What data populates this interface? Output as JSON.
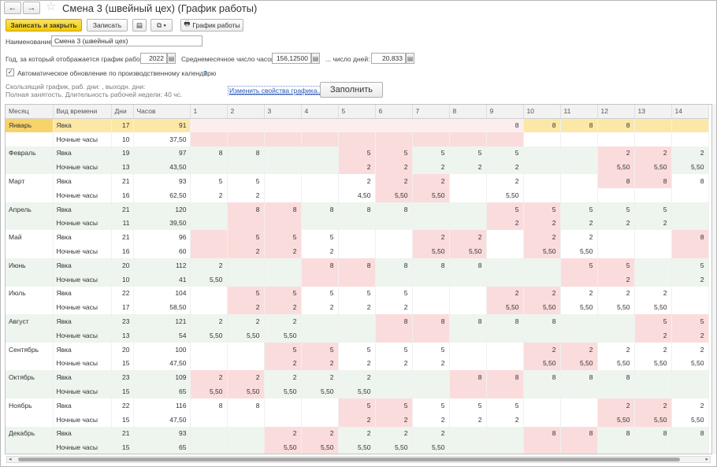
{
  "window": {
    "back": "←",
    "forward": "→",
    "star": "☆",
    "title": "Смена 3 (швейный цех) (График работы)"
  },
  "toolbar": {
    "save_close": "Записать и закрыть",
    "save": "Записать",
    "list_icon": "▤",
    "copy_icon": "⧉ ▾",
    "print_icon": "🖶",
    "schedule": "График работы"
  },
  "form": {
    "name_label": "Наименование:",
    "name_value": "Смена 3 (швейный цех)",
    "year_label": "Год, за который отображается график работы:",
    "year_value": "2022",
    "avg_hours_label": "Среднемесячное число часов:",
    "avg_hours_value": "156,12500",
    "days_label": "... число дней:",
    "days_value": "20,833",
    "auto_update_label": "Автоматическое обновление по производственному календарю",
    "auto_update_checked": "✓",
    "help": "?",
    "info_line1": "Скользящий график, раб. дни: , выходн. дни:",
    "info_line2": "Полная занятость. Длительность рабочей недели: 40 чс.",
    "change_props": "Изменить свойства графика...",
    "fill_button": "Заполнить"
  },
  "grid": {
    "headers": [
      "Месяц",
      "Вид времени",
      "Дни",
      "Часов",
      "1",
      "2",
      "3",
      "4",
      "5",
      "6",
      "7",
      "8",
      "9",
      "10",
      "11",
      "12",
      "13",
      "14"
    ],
    "rows": [
      {
        "month": "Январь",
        "kind": "Явка",
        "days": "17",
        "hours": "91",
        "day_vals": [
          "",
          "",
          "",
          "",
          "",
          "",
          "",
          "",
          "8",
          "8",
          "8",
          "8",
          "",
          ""
        ],
        "day_colors": [
          "lp",
          "lp",
          "lp",
          "lp",
          "lp",
          "lp",
          "lp",
          "lp",
          "lp",
          "y",
          "y",
          "y",
          "y",
          "y"
        ]
      },
      {
        "month": "",
        "kind": "Ночные часы",
        "days": "10",
        "hours": "37,50",
        "day_vals": [
          "",
          "",
          "",
          "",
          "",
          "",
          "",
          "",
          "",
          "",
          "",
          "",
          "",
          ""
        ],
        "day_colors": [
          "p",
          "p",
          "p",
          "p",
          "p",
          "p",
          "p",
          "p",
          "p",
          "w",
          "w",
          "w",
          "w",
          "w"
        ]
      },
      {
        "month": "Февраль",
        "kind": "Явка",
        "days": "19",
        "hours": "97",
        "day_vals": [
          "8",
          "8",
          "",
          "",
          "5",
          "5",
          "5",
          "5",
          "5",
          "",
          "",
          "2",
          "2",
          "2"
        ],
        "day_colors": [
          "g",
          "g",
          "g",
          "g",
          "p",
          "p",
          "g",
          "g",
          "g",
          "g",
          "g",
          "p",
          "p",
          "g"
        ]
      },
      {
        "month": "",
        "kind": "Ночные часы",
        "days": "13",
        "hours": "43,50",
        "day_vals": [
          "",
          "",
          "",
          "",
          "2",
          "2",
          "2",
          "2",
          "2",
          "",
          "",
          "5,50",
          "5,50",
          "5,50"
        ],
        "day_colors": [
          "g",
          "g",
          "g",
          "g",
          "p",
          "p",
          "g",
          "g",
          "g",
          "g",
          "g",
          "p",
          "p",
          "g"
        ]
      },
      {
        "month": "Март",
        "kind": "Явка",
        "days": "21",
        "hours": "93",
        "day_vals": [
          "5",
          "5",
          "",
          "",
          "2",
          "2",
          "2",
          "",
          "2",
          "",
          "",
          "8",
          "8",
          "8"
        ],
        "day_colors": [
          "w",
          "w",
          "w",
          "w",
          "w",
          "p",
          "p",
          "w",
          "w",
          "w",
          "w",
          "p",
          "p",
          "w"
        ]
      },
      {
        "month": "",
        "kind": "Ночные часы",
        "days": "16",
        "hours": "62,50",
        "day_vals": [
          "2",
          "2",
          "",
          "",
          "4,50",
          "5,50",
          "5,50",
          "",
          "5,50",
          "",
          "",
          "",
          "",
          ""
        ],
        "day_colors": [
          "w",
          "w",
          "w",
          "w",
          "w",
          "p",
          "p",
          "w",
          "w",
          "w",
          "w",
          "w",
          "w",
          "w"
        ]
      },
      {
        "month": "Апрель",
        "kind": "Явка",
        "days": "21",
        "hours": "120",
        "day_vals": [
          "",
          "8",
          "8",
          "8",
          "8",
          "8",
          "",
          "",
          "5",
          "5",
          "5",
          "5",
          "5",
          ""
        ],
        "day_colors": [
          "g",
          "p",
          "p",
          "g",
          "g",
          "g",
          "g",
          "g",
          "p",
          "p",
          "g",
          "g",
          "g",
          "g"
        ]
      },
      {
        "month": "",
        "kind": "Ночные часы",
        "days": "11",
        "hours": "39,50",
        "day_vals": [
          "",
          "",
          "",
          "",
          "",
          "",
          "",
          "",
          "2",
          "2",
          "2",
          "2",
          "2",
          ""
        ],
        "day_colors": [
          "g",
          "p",
          "p",
          "g",
          "g",
          "g",
          "g",
          "g",
          "p",
          "p",
          "g",
          "g",
          "g",
          "g"
        ]
      },
      {
        "month": "Май",
        "kind": "Явка",
        "days": "21",
        "hours": "96",
        "day_vals": [
          "",
          "5",
          "5",
          "5",
          "",
          "",
          "2",
          "2",
          "",
          "2",
          "2",
          "",
          "",
          "8"
        ],
        "day_colors": [
          "p",
          "p",
          "p",
          "w",
          "w",
          "w",
          "p",
          "p",
          "w",
          "p",
          "w",
          "w",
          "w",
          "p"
        ]
      },
      {
        "month": "",
        "kind": "Ночные часы",
        "days": "16",
        "hours": "60",
        "day_vals": [
          "",
          "2",
          "2",
          "2",
          "",
          "",
          "5,50",
          "5,50",
          "",
          "5,50",
          "5,50",
          "",
          "",
          ""
        ],
        "day_colors": [
          "p",
          "p",
          "p",
          "w",
          "w",
          "w",
          "p",
          "p",
          "w",
          "p",
          "w",
          "w",
          "w",
          "p"
        ]
      },
      {
        "month": "Июнь",
        "kind": "Явка",
        "days": "20",
        "hours": "112",
        "day_vals": [
          "2",
          "",
          "",
          "8",
          "8",
          "8",
          "8",
          "8",
          "",
          "",
          "5",
          "5",
          "",
          "5"
        ],
        "day_colors": [
          "g",
          "g",
          "g",
          "p",
          "p",
          "g",
          "g",
          "g",
          "g",
          "g",
          "p",
          "p",
          "g",
          "g"
        ]
      },
      {
        "month": "",
        "kind": "Ночные часы",
        "days": "10",
        "hours": "41",
        "day_vals": [
          "5,50",
          "",
          "",
          "",
          "",
          "",
          "",
          "",
          "",
          "",
          "",
          "2",
          "",
          "2"
        ],
        "day_colors": [
          "g",
          "g",
          "g",
          "p",
          "p",
          "g",
          "g",
          "g",
          "g",
          "g",
          "p",
          "p",
          "g",
          "g"
        ]
      },
      {
        "month": "Июль",
        "kind": "Явка",
        "days": "22",
        "hours": "104",
        "day_vals": [
          "",
          "5",
          "5",
          "5",
          "5",
          "5",
          "",
          "",
          "2",
          "2",
          "2",
          "2",
          "2",
          ""
        ],
        "day_colors": [
          "w",
          "p",
          "p",
          "w",
          "w",
          "w",
          "w",
          "w",
          "p",
          "p",
          "w",
          "w",
          "w",
          "w"
        ]
      },
      {
        "month": "",
        "kind": "Ночные часы",
        "days": "17",
        "hours": "58,50",
        "day_vals": [
          "",
          "2",
          "2",
          "2",
          "2",
          "2",
          "",
          "",
          "5,50",
          "5,50",
          "5,50",
          "5,50",
          "5,50",
          ""
        ],
        "day_colors": [
          "w",
          "p",
          "p",
          "w",
          "w",
          "w",
          "w",
          "w",
          "p",
          "p",
          "w",
          "w",
          "w",
          "w"
        ]
      },
      {
        "month": "Август",
        "kind": "Явка",
        "days": "23",
        "hours": "121",
        "day_vals": [
          "2",
          "2",
          "2",
          "",
          "",
          "8",
          "8",
          "8",
          "8",
          "8",
          "",
          "",
          "5",
          "5"
        ],
        "day_colors": [
          "g",
          "g",
          "g",
          "g",
          "g",
          "p",
          "p",
          "g",
          "g",
          "g",
          "g",
          "g",
          "p",
          "p"
        ]
      },
      {
        "month": "",
        "kind": "Ночные часы",
        "days": "13",
        "hours": "54",
        "day_vals": [
          "5,50",
          "5,50",
          "5,50",
          "",
          "",
          "",
          "",
          "",
          "",
          "",
          "",
          "",
          "2",
          "2"
        ],
        "day_colors": [
          "g",
          "g",
          "g",
          "g",
          "g",
          "p",
          "p",
          "g",
          "g",
          "g",
          "g",
          "g",
          "p",
          "p"
        ]
      },
      {
        "month": "Сентябрь",
        "kind": "Явка",
        "days": "20",
        "hours": "100",
        "day_vals": [
          "",
          "",
          "5",
          "5",
          "5",
          "5",
          "5",
          "",
          "",
          "2",
          "2",
          "2",
          "2",
          "2"
        ],
        "day_colors": [
          "w",
          "w",
          "p",
          "p",
          "w",
          "w",
          "w",
          "w",
          "w",
          "p",
          "p",
          "w",
          "w",
          "w"
        ]
      },
      {
        "month": "",
        "kind": "Ночные часы",
        "days": "15",
        "hours": "47,50",
        "day_vals": [
          "",
          "",
          "2",
          "2",
          "2",
          "2",
          "2",
          "",
          "",
          "5,50",
          "5,50",
          "5,50",
          "5,50",
          "5,50"
        ],
        "day_colors": [
          "w",
          "w",
          "p",
          "p",
          "w",
          "w",
          "w",
          "w",
          "w",
          "p",
          "p",
          "w",
          "w",
          "w"
        ]
      },
      {
        "month": "Октябрь",
        "kind": "Явка",
        "days": "23",
        "hours": "109",
        "day_vals": [
          "2",
          "2",
          "2",
          "2",
          "2",
          "",
          "",
          "8",
          "8",
          "8",
          "8",
          "8",
          "",
          ""
        ],
        "day_colors": [
          "p",
          "p",
          "g",
          "g",
          "g",
          "g",
          "g",
          "p",
          "p",
          "g",
          "g",
          "g",
          "g",
          "g"
        ]
      },
      {
        "month": "",
        "kind": "Ночные часы",
        "days": "15",
        "hours": "65",
        "day_vals": [
          "5,50",
          "5,50",
          "5,50",
          "5,50",
          "5,50",
          "",
          "",
          "",
          "",
          "",
          "",
          "",
          "",
          ""
        ],
        "day_colors": [
          "p",
          "p",
          "g",
          "g",
          "g",
          "g",
          "g",
          "p",
          "p",
          "g",
          "g",
          "g",
          "g",
          "g"
        ]
      },
      {
        "month": "Ноябрь",
        "kind": "Явка",
        "days": "22",
        "hours": "116",
        "day_vals": [
          "8",
          "8",
          "",
          "",
          "5",
          "5",
          "5",
          "5",
          "5",
          "",
          "",
          "2",
          "2",
          "2"
        ],
        "day_colors": [
          "w",
          "w",
          "w",
          "w",
          "p",
          "p",
          "w",
          "w",
          "w",
          "w",
          "w",
          "p",
          "p",
          "w"
        ]
      },
      {
        "month": "",
        "kind": "Ночные часы",
        "days": "15",
        "hours": "47,50",
        "day_vals": [
          "",
          "",
          "",
          "",
          "2",
          "2",
          "2",
          "2",
          "2",
          "",
          "",
          "5,50",
          "5,50",
          "5,50"
        ],
        "day_colors": [
          "w",
          "w",
          "w",
          "w",
          "p",
          "p",
          "w",
          "w",
          "w",
          "w",
          "w",
          "p",
          "p",
          "w"
        ]
      },
      {
        "month": "Декабрь",
        "kind": "Явка",
        "days": "21",
        "hours": "93",
        "day_vals": [
          "",
          "",
          "2",
          "2",
          "2",
          "2",
          "2",
          "",
          "",
          "8",
          "8",
          "8",
          "8",
          "8"
        ],
        "day_colors": [
          "g",
          "g",
          "p",
          "p",
          "g",
          "g",
          "g",
          "g",
          "g",
          "p",
          "p",
          "g",
          "g",
          "g"
        ]
      },
      {
        "month": "",
        "kind": "Ночные часы",
        "days": "15",
        "hours": "65",
        "day_vals": [
          "",
          "",
          "5,50",
          "5,50",
          "5,50",
          "5,50",
          "5,50",
          "",
          "",
          "",
          "",
          "",
          "",
          ""
        ],
        "day_colors": [
          "g",
          "g",
          "p",
          "p",
          "g",
          "g",
          "g",
          "g",
          "g",
          "p",
          "p",
          "g",
          "g",
          "g"
        ]
      }
    ]
  },
  "scrollbar": {
    "left": "◂",
    "right": "▸"
  }
}
